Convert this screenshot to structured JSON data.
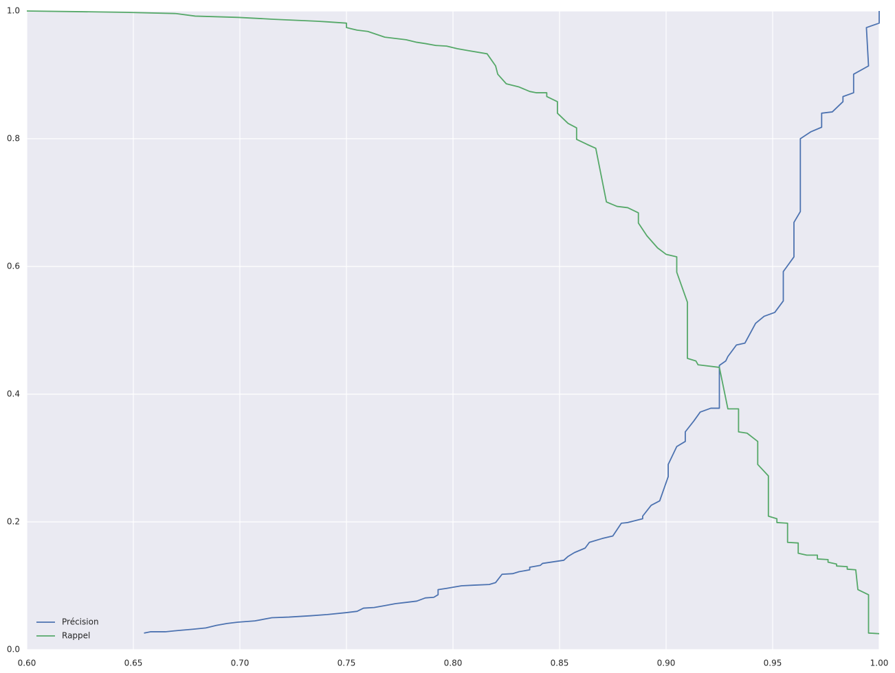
{
  "chart_data": {
    "type": "line",
    "xlim": [
      0.6,
      1.0
    ],
    "xticks": [
      {
        "value": 0.6,
        "label": "0.60"
      },
      0.65,
      {
        "value": 0.7,
        "label": "0.70"
      },
      0.75,
      {
        "value": 0.8,
        "label": "0.80"
      },
      0.85,
      {
        "value": 0.9,
        "label": "0.90"
      },
      0.95,
      {
        "value": 1.0,
        "label": "1.00"
      }
    ],
    "ylim": [
      0,
      1.0
    ],
    "yticks": [
      {
        "value": 0,
        "label": "0.0"
      },
      0.2,
      0.4,
      0.6,
      0.8,
      {
        "value": 1.0,
        "label": "1.0"
      }
    ],
    "grid": true,
    "legend": "lower left",
    "series": [
      {
        "name": "Précision",
        "color": "#4c72b0",
        "x": [
          0.655,
          0.658,
          0.665,
          0.671,
          0.678,
          0.684,
          0.689,
          0.694,
          0.699,
          0.707,
          0.715,
          0.723,
          0.733,
          0.741,
          0.75,
          0.755,
          0.758,
          0.763,
          0.768,
          0.773,
          0.778,
          0.783,
          0.787,
          0.791,
          0.793,
          0.793,
          0.797,
          0.804,
          0.81,
          0.817,
          0.82,
          0.823,
          0.828,
          0.831,
          0.836,
          0.836,
          0.841,
          0.842,
          0.852,
          0.854,
          0.857,
          0.862,
          0.864,
          0.87,
          0.875,
          0.879,
          0.882,
          0.889,
          0.889,
          0.893,
          0.897,
          0.901,
          0.901,
          0.905,
          0.909,
          0.909,
          0.913,
          0.916,
          0.921,
          0.925,
          0.925,
          0.928,
          0.929,
          0.933,
          0.937,
          0.942,
          0.946,
          0.951,
          0.955,
          0.955,
          0.96,
          0.96,
          0.963,
          0.963,
          0.963,
          0.963,
          0.968,
          0.973,
          0.973,
          0.978,
          0.983,
          0.983,
          0.988,
          0.988,
          0.995,
          0.994,
          1.0,
          1.0
        ],
        "values": [
          0.026,
          0.028,
          0.028,
          0.03,
          0.032,
          0.034,
          0.038,
          0.041,
          0.043,
          0.045,
          0.05,
          0.051,
          0.053,
          0.055,
          0.058,
          0.06,
          0.065,
          0.066,
          0.069,
          0.072,
          0.074,
          0.076,
          0.081,
          0.082,
          0.086,
          0.094,
          0.096,
          0.1,
          0.101,
          0.102,
          0.105,
          0.118,
          0.119,
          0.122,
          0.125,
          0.129,
          0.132,
          0.135,
          0.14,
          0.146,
          0.152,
          0.159,
          0.168,
          0.174,
          0.178,
          0.198,
          0.199,
          0.205,
          0.209,
          0.226,
          0.233,
          0.271,
          0.29,
          0.318,
          0.326,
          0.341,
          0.358,
          0.372,
          0.378,
          0.378,
          0.445,
          0.452,
          0.459,
          0.477,
          0.48,
          0.511,
          0.522,
          0.528,
          0.546,
          0.592,
          0.615,
          0.669,
          0.686,
          0.699,
          0.791,
          0.8,
          0.811,
          0.818,
          0.84,
          0.842,
          0.858,
          0.866,
          0.872,
          0.901,
          0.914,
          0.974,
          0.981,
          1.0
        ]
      },
      {
        "name": "Rappel",
        "color": "#55a868",
        "x": [
          0.6,
          0.623,
          0.645,
          0.67,
          0.679,
          0.699,
          0.716,
          0.736,
          0.741,
          0.75,
          0.75,
          0.755,
          0.76,
          0.768,
          0.778,
          0.783,
          0.787,
          0.792,
          0.797,
          0.802,
          0.807,
          0.816,
          0.82,
          0.821,
          0.825,
          0.831,
          0.836,
          0.839,
          0.844,
          0.844,
          0.849,
          0.849,
          0.854,
          0.858,
          0.858,
          0.863,
          0.867,
          0.872,
          0.877,
          0.882,
          0.887,
          0.887,
          0.891,
          0.896,
          0.9,
          0.905,
          0.905,
          0.91,
          0.91,
          0.914,
          0.915,
          0.925,
          0.929,
          0.934,
          0.934,
          0.938,
          0.943,
          0.943,
          0.948,
          0.948,
          0.952,
          0.952,
          0.957,
          0.957,
          0.962,
          0.962,
          0.966,
          0.971,
          0.971,
          0.976,
          0.976,
          0.98,
          0.98,
          0.985,
          0.985,
          0.989,
          0.99,
          0.995,
          0.995,
          1.0
        ],
        "values": [
          1.0,
          0.999,
          0.998,
          0.996,
          0.992,
          0.99,
          0.987,
          0.984,
          0.983,
          0.981,
          0.974,
          0.97,
          0.968,
          0.959,
          0.955,
          0.951,
          0.949,
          0.946,
          0.945,
          0.941,
          0.938,
          0.933,
          0.914,
          0.901,
          0.886,
          0.881,
          0.874,
          0.872,
          0.872,
          0.866,
          0.858,
          0.84,
          0.824,
          0.817,
          0.799,
          0.791,
          0.785,
          0.701,
          0.694,
          0.692,
          0.684,
          0.668,
          0.648,
          0.629,
          0.619,
          0.615,
          0.591,
          0.544,
          0.456,
          0.452,
          0.446,
          0.442,
          0.377,
          0.377,
          0.341,
          0.339,
          0.326,
          0.29,
          0.272,
          0.209,
          0.205,
          0.199,
          0.198,
          0.168,
          0.167,
          0.151,
          0.148,
          0.148,
          0.142,
          0.141,
          0.137,
          0.134,
          0.131,
          0.13,
          0.126,
          0.125,
          0.094,
          0.086,
          0.026,
          0.025
        ]
      }
    ]
  }
}
